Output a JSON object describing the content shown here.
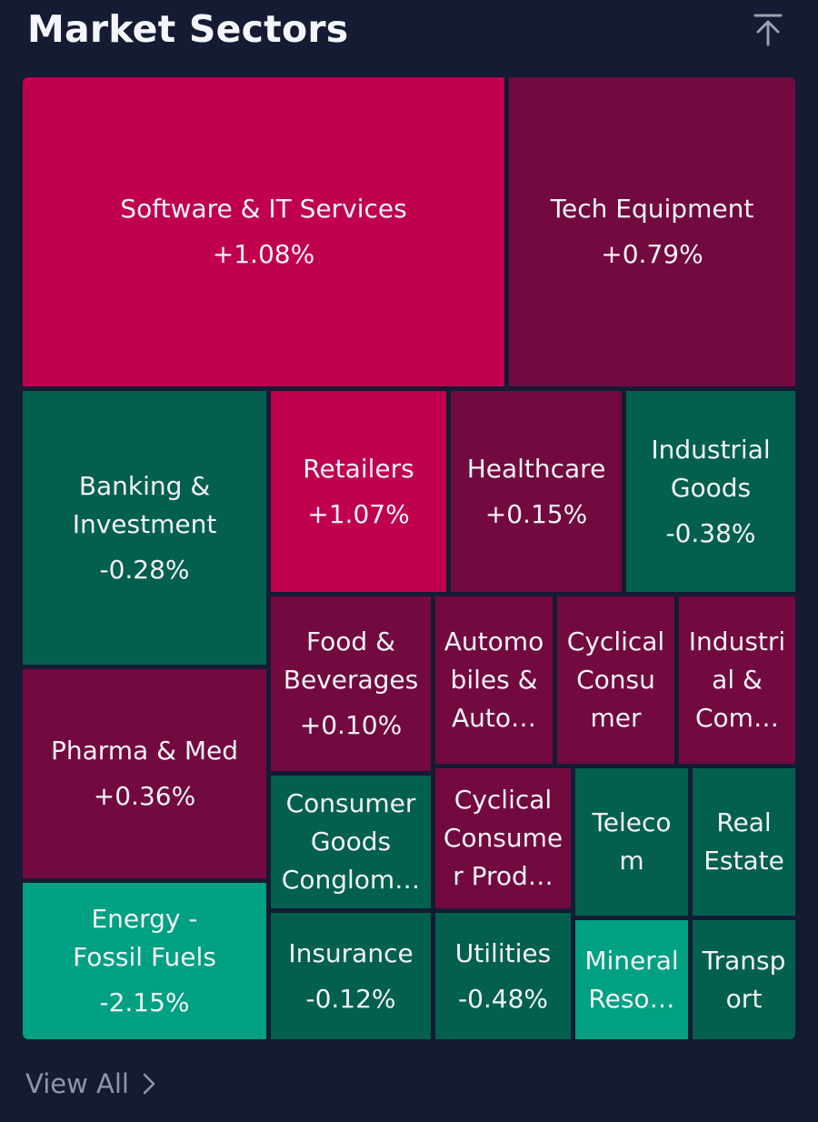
{
  "header": {
    "title": "Market Sectors",
    "collapse_icon": "arrow-up-to-top-icon"
  },
  "colors": {
    "background": "#141b33",
    "strong_up": "#c0004f",
    "up": "#720a40",
    "down": "#03604f",
    "strong_down": "#00a083"
  },
  "sectors": [
    {
      "id": "software-it-services",
      "name": "Software & IT Services",
      "change": "+1.08%",
      "color": "#c0004f"
    },
    {
      "id": "tech-equipment",
      "name": "Tech Equipment",
      "change": "+0.79%",
      "color": "#720a40"
    },
    {
      "id": "banking-investment",
      "name": "Banking &\nInvestment",
      "change": "-0.28%",
      "color": "#03604f"
    },
    {
      "id": "retailers",
      "name": "Retailers",
      "change": "+1.07%",
      "color": "#c0004f"
    },
    {
      "id": "healthcare",
      "name": "Healthcare",
      "change": "+0.15%",
      "color": "#720a40"
    },
    {
      "id": "industrial-goods",
      "name": "Industrial\nGoods",
      "change": "-0.38%",
      "color": "#03604f"
    },
    {
      "id": "pharma-med",
      "name": "Pharma & Med",
      "change": "+0.36%",
      "color": "#720a40"
    },
    {
      "id": "food-beverages",
      "name": "Food &\nBeverages",
      "change": "+0.10%",
      "color": "#720a40"
    },
    {
      "id": "automobiles-auto",
      "name": "Automo\nbiles &\nAuto…",
      "change": "",
      "color": "#720a40"
    },
    {
      "id": "cyclical-consumer",
      "name": "Cyclical\nConsu\nmer",
      "change": "",
      "color": "#720a40"
    },
    {
      "id": "industrial-com",
      "name": "Industri\nal &\nCom…",
      "change": "",
      "color": "#720a40"
    },
    {
      "id": "consumer-goods-conglom",
      "name": "Consumer\nGoods\nConglom…",
      "change": "",
      "color": "#03604f"
    },
    {
      "id": "cyclical-consumer-prod",
      "name": "Cyclical\nConsume\nr Prod…",
      "change": "",
      "color": "#720a40"
    },
    {
      "id": "telecom",
      "name": "Teleco\nm",
      "change": "",
      "color": "#03604f"
    },
    {
      "id": "real-estate",
      "name": "Real\nEstate",
      "change": "",
      "color": "#03604f"
    },
    {
      "id": "energy-fossil-fuels",
      "name": "Energy -\nFossil Fuels",
      "change": "-2.15%",
      "color": "#00a083"
    },
    {
      "id": "insurance",
      "name": "Insurance",
      "change": "-0.12%",
      "color": "#03604f"
    },
    {
      "id": "utilities",
      "name": "Utilities",
      "change": "-0.48%",
      "color": "#03604f"
    },
    {
      "id": "mineral-resources",
      "name": "Mineral\nReso…",
      "change": "",
      "color": "#00a083"
    },
    {
      "id": "transport",
      "name": "Transp\nort",
      "change": "",
      "color": "#03604f"
    }
  ],
  "footer": {
    "view_all_label": "View All",
    "chevron_icon": "chevron-right-icon"
  }
}
